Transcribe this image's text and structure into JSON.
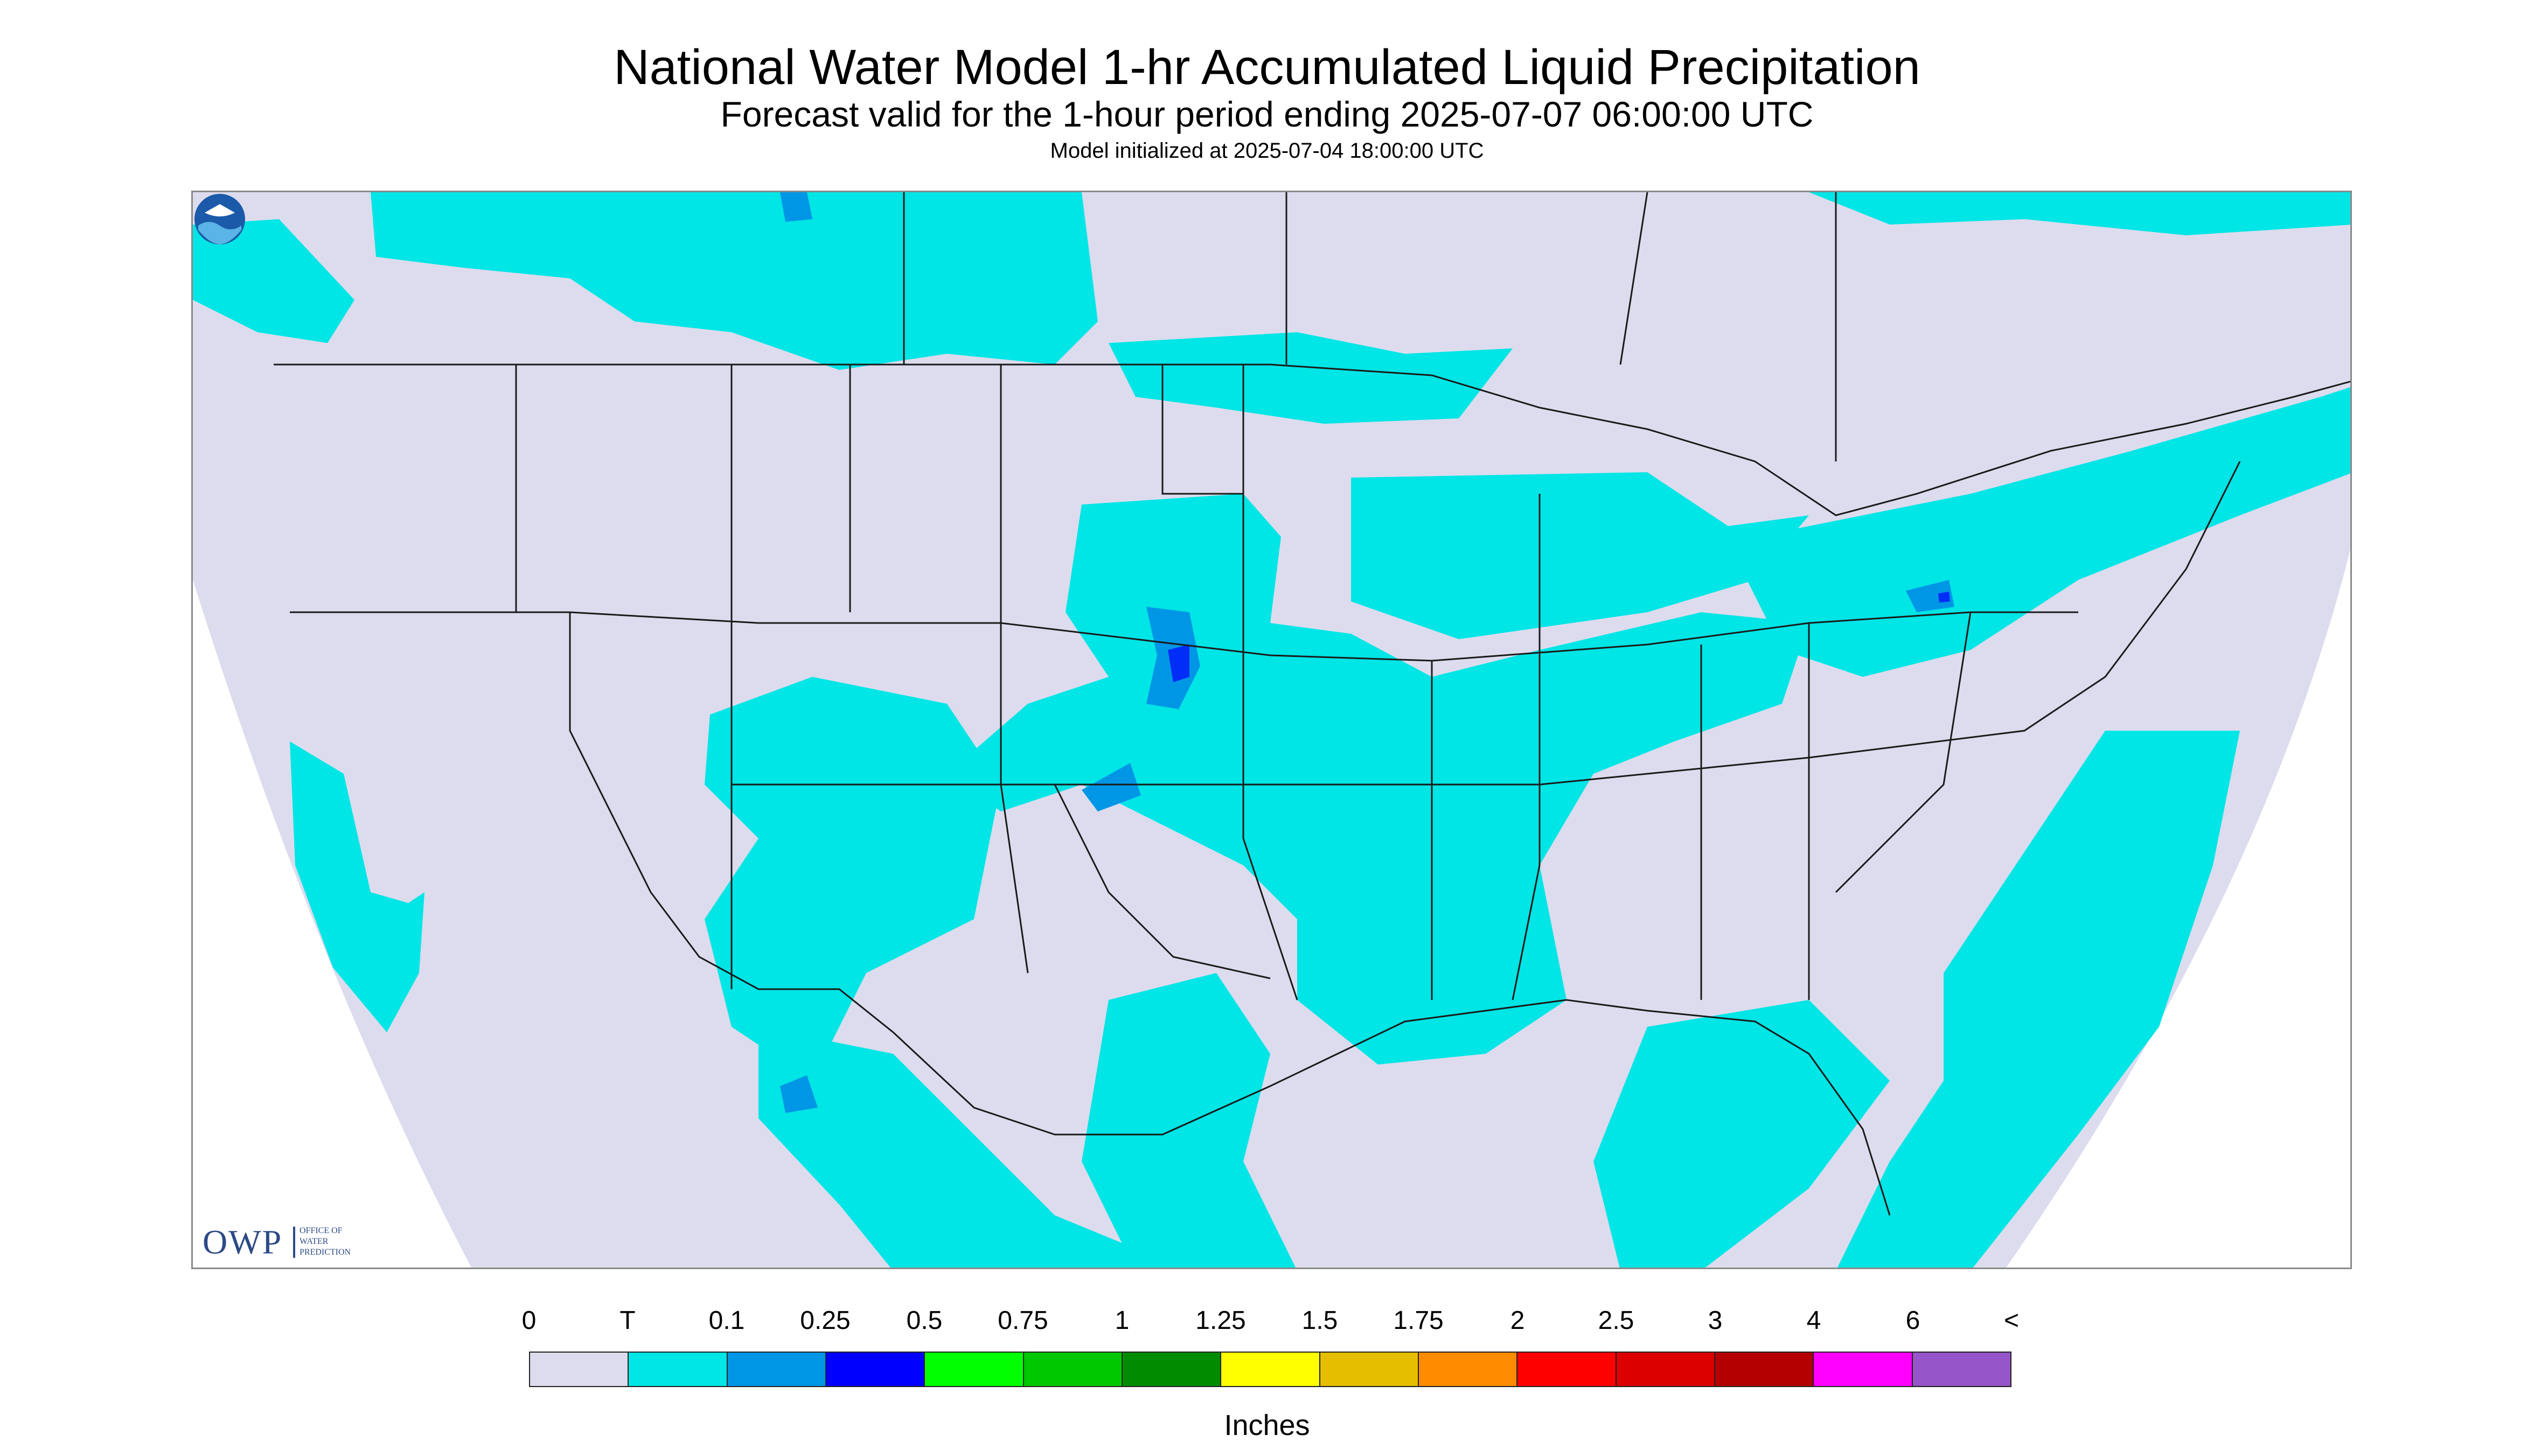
{
  "title": "National Water Model 1-hr Accumulated Liquid Precipitation",
  "subtitle": "Forecast valid for the 1-hour period ending 2025-07-07 06:00:00 UTC",
  "init": "Model initialized at 2025-07-04 18:00:00 UTC",
  "logo": {
    "text": "OWP",
    "small_lines": [
      "OFFICE OF",
      "WATER",
      "PREDICTION"
    ],
    "noaa_icon": "noaa-logo-icon"
  },
  "colors": {
    "no_data": "#ffffff",
    "domain": "#dcdcee",
    "trace": "#00e5e5",
    "p01": "#0096e6",
    "p025": "#0000ff",
    "border_lines": "#1a1a1a"
  },
  "legend": {
    "units": "Inches",
    "labels": [
      "0",
      "T",
      "0.1",
      "0.25",
      "0.5",
      "0.75",
      "1",
      "1.25",
      "1.5",
      "1.75",
      "2",
      "2.5",
      "3",
      "4",
      "6",
      "<"
    ],
    "colors": [
      "#dcdcee",
      "#00e5e5",
      "#0096e6",
      "#0000ff",
      "#00ff00",
      "#00c800",
      "#008c00",
      "#ffff00",
      "#e6be00",
      "#ff8c00",
      "#ff0000",
      "#dc0000",
      "#b40000",
      "#ff00ff",
      "#9655c8"
    ]
  }
}
